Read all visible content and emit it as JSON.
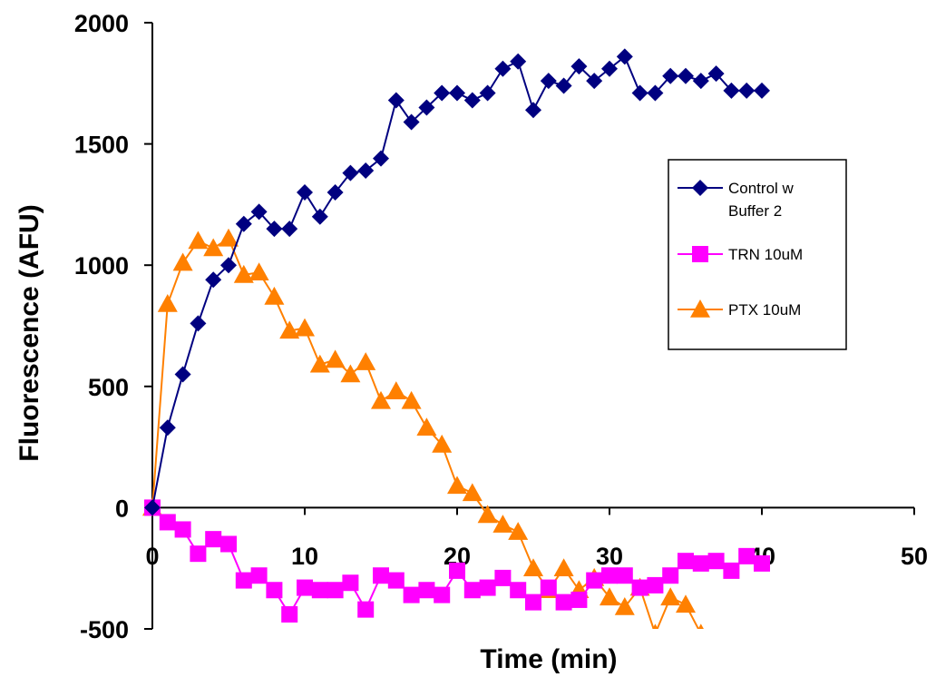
{
  "chart_data": {
    "type": "line",
    "xlabel": "Time (min)",
    "ylabel": "Fluorescence (AFU)",
    "xlim": [
      0,
      50
    ],
    "ylim": [
      -500,
      2000
    ],
    "x_ticks": [
      0,
      10,
      20,
      30,
      40,
      50
    ],
    "y_ticks": [
      -500,
      0,
      500,
      1000,
      1500,
      2000
    ],
    "grid": false,
    "legend_position": "right",
    "series": [
      {
        "name": "Control w Buffer 2",
        "color": "#000080",
        "marker": "diamond",
        "x": [
          0,
          1,
          2,
          3,
          4,
          5,
          6,
          7,
          8,
          9,
          10,
          11,
          12,
          13,
          14,
          15,
          16,
          17,
          18,
          19,
          20,
          21,
          22,
          23,
          24,
          25,
          26,
          27,
          28,
          29,
          30,
          31,
          32,
          33,
          34,
          35,
          36,
          37,
          38,
          39,
          40
        ],
        "y": [
          0,
          330,
          550,
          760,
          940,
          1000,
          1170,
          1220,
          1150,
          1150,
          1300,
          1200,
          1300,
          1380,
          1390,
          1440,
          1680,
          1590,
          1650,
          1710,
          1710,
          1680,
          1710,
          1810,
          1840,
          1640,
          1760,
          1740,
          1820,
          1760,
          1810,
          1860,
          1710,
          1710,
          1780,
          1780,
          1760,
          1790,
          1720,
          1720,
          1720
        ]
      },
      {
        "name": "TRN 10uM",
        "color": "#ff00ff",
        "marker": "square",
        "x": [
          0,
          1,
          2,
          3,
          4,
          5,
          6,
          7,
          8,
          9,
          10,
          11,
          12,
          13,
          14,
          15,
          16,
          17,
          18,
          19,
          20,
          21,
          22,
          23,
          24,
          25,
          26,
          27,
          28,
          29,
          30,
          31,
          32,
          33,
          34,
          35,
          36,
          37,
          38,
          39,
          40
        ],
        "y": [
          0,
          -60,
          -90,
          -190,
          -130,
          -150,
          -300,
          -280,
          -340,
          -440,
          -330,
          -340,
          -340,
          -310,
          -420,
          -280,
          -300,
          -360,
          -340,
          -360,
          -260,
          -340,
          -330,
          -290,
          -340,
          -390,
          -330,
          -390,
          -380,
          -300,
          -280,
          -280,
          -330,
          -320,
          -280,
          -220,
          -230,
          -220,
          -260,
          -200,
          -230
        ]
      },
      {
        "name": "PTX 10uM",
        "color": "#ff8000",
        "marker": "triangle",
        "x": [
          0,
          1,
          2,
          3,
          4,
          5,
          6,
          7,
          8,
          9,
          10,
          11,
          12,
          13,
          14,
          15,
          16,
          17,
          18,
          19,
          20,
          21,
          22,
          23,
          24,
          25,
          26,
          27,
          28,
          29,
          30,
          31,
          32,
          33,
          34,
          35,
          36
        ],
        "y": [
          0,
          840,
          1010,
          1100,
          1070,
          1110,
          960,
          970,
          870,
          730,
          740,
          590,
          610,
          550,
          600,
          440,
          480,
          440,
          330,
          260,
          90,
          60,
          -30,
          -70,
          -100,
          -250,
          -340,
          -250,
          -340,
          -290,
          -370,
          -410,
          -330,
          -520,
          -370,
          -400,
          -520
        ]
      }
    ]
  }
}
